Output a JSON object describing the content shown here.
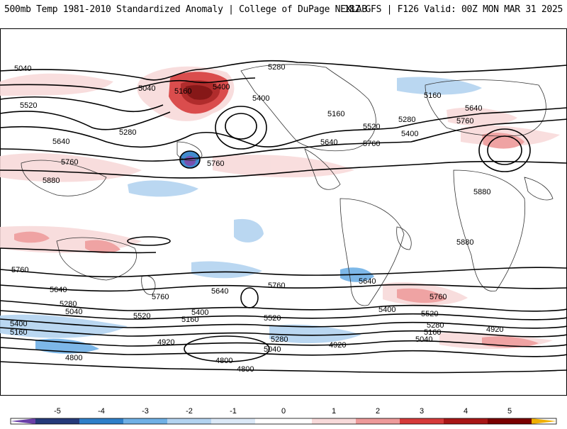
{
  "header": {
    "title": "500mb Temp 1981-2010 Standardized Anomaly | College of DuPage NEXLAB",
    "run_info": "18Z GFS | F126 Valid: 00Z MON MAR 31 2025"
  },
  "map": {
    "contour_labels": [
      "5040",
      "5040",
      "5160",
      "5280",
      "5400",
      "5520",
      "5640",
      "5760",
      "5880",
      "5280",
      "5400",
      "5760",
      "5160",
      "5280",
      "5520",
      "5400",
      "5640",
      "5760",
      "5160",
      "5640",
      "5760",
      "5880",
      "5880",
      "5760",
      "5640",
      "5760",
      "5640",
      "5760",
      "5640",
      "5760",
      "5280",
      "5040",
      "5520",
      "5400",
      "5160",
      "5520",
      "5400",
      "5520",
      "5280",
      "5160",
      "5040",
      "5400",
      "5160",
      "4920",
      "4800",
      "5280",
      "5040",
      "4920",
      "4920",
      "4800",
      "4800"
    ]
  },
  "colorbar": {
    "labels": [
      "-5",
      "-4",
      "-3",
      "-2",
      "-1",
      "0",
      "1",
      "2",
      "3",
      "4",
      "5"
    ],
    "colors": [
      "#6a3fa8",
      "#253a7a",
      "#2e7fc9",
      "#6fb0e6",
      "#b3d3f0",
      "#dce9f7",
      "#ffffff",
      "#f8dada",
      "#ee9a9a",
      "#d63a3a",
      "#a81616",
      "#7a0000",
      "#f0b000"
    ]
  }
}
